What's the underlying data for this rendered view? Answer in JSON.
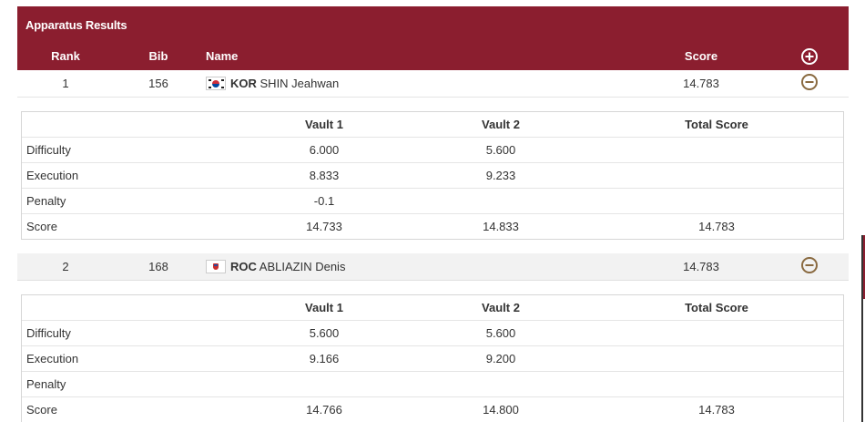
{
  "panel": {
    "title": "Apparatus Results",
    "columns": {
      "rank": "Rank",
      "bib": "Bib",
      "name": "Name",
      "score": "Score"
    },
    "expand_all_icon": "plus-circle-icon"
  },
  "athletes": [
    {
      "rank": "1",
      "bib": "156",
      "flag": "korea-flag-icon",
      "noc": "KOR",
      "name": "SHIN Jeahwan",
      "score": "14.783",
      "collapse_icon": "minus-circle-icon",
      "detail": {
        "headers": {
          "label": "",
          "vault1": "Vault 1",
          "vault2": "Vault 2",
          "total": "Total Score"
        },
        "rows": [
          {
            "label": "Difficulty",
            "vault1": "6.000",
            "vault2": "5.600",
            "total": ""
          },
          {
            "label": "Execution",
            "vault1": "8.833",
            "vault2": "9.233",
            "total": ""
          },
          {
            "label": "Penalty",
            "vault1": "-0.1",
            "vault2": "",
            "total": ""
          },
          {
            "label": "Score",
            "vault1": "14.733",
            "vault2": "14.833",
            "total": "14.783"
          }
        ]
      }
    },
    {
      "rank": "2",
      "bib": "168",
      "flag": "roc-flag-icon",
      "noc": "ROC",
      "name": "ABLIAZIN Denis",
      "score": "14.783",
      "collapse_icon": "minus-circle-icon",
      "detail": {
        "headers": {
          "label": "",
          "vault1": "Vault 1",
          "vault2": "Vault 2",
          "total": "Total Score"
        },
        "rows": [
          {
            "label": "Difficulty",
            "vault1": "5.600",
            "vault2": "5.600",
            "total": ""
          },
          {
            "label": "Execution",
            "vault1": "9.166",
            "vault2": "9.200",
            "total": ""
          },
          {
            "label": "Penalty",
            "vault1": "",
            "vault2": "",
            "total": ""
          },
          {
            "label": "Score",
            "vault1": "14.766",
            "vault2": "14.800",
            "total": "14.783"
          }
        ]
      }
    }
  ],
  "colors": {
    "header_bg": "#8b1e2f",
    "toggle_accent": "#8a6a40",
    "alt_row_bg": "#f2f2f2"
  }
}
